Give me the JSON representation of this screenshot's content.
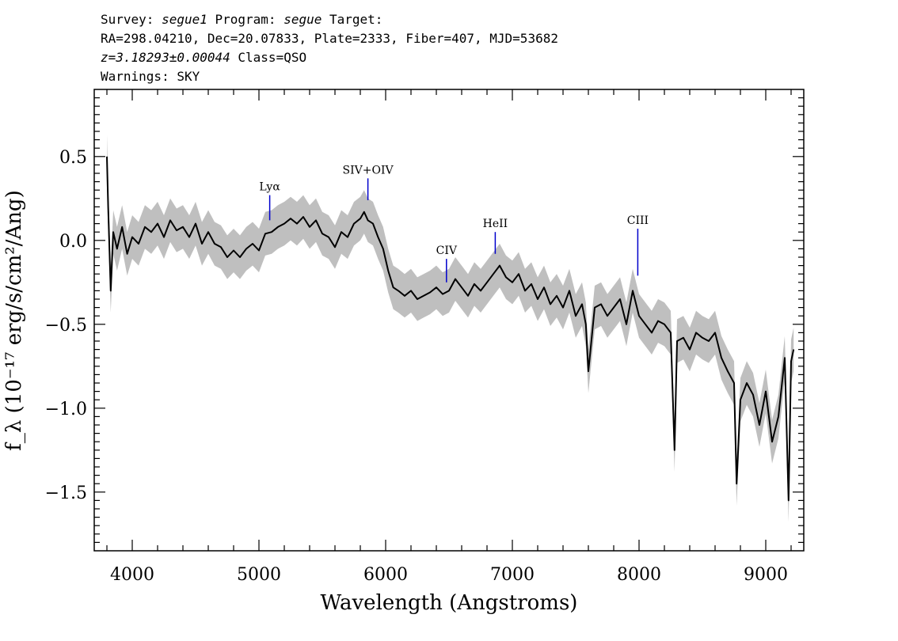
{
  "header": {
    "line1": {
      "survey_label": "Survey: ",
      "survey": "segue1",
      "program_label": " Program: ",
      "program": "segue",
      "target_label": " Target:"
    },
    "line2": "RA=298.04210, Dec=20.07833, Plate=2333, Fiber=407, MJD=53682",
    "line3": {
      "redshift": "z=3.18293±0.00044",
      "class": " Class=QSO"
    },
    "line4": "Warnings: SKY"
  },
  "colors": {
    "flux": "#000000",
    "error": "#bfbfbf",
    "line_marker": "#0000cc"
  },
  "chart_data": {
    "type": "line",
    "xlabel": "Wavelength (Angstroms)",
    "ylabel": "f_λ (10⁻¹⁷ erg/s/cm²/Ang)",
    "xlim": [
      3700,
      9300
    ],
    "ylim": [
      -1.85,
      0.9
    ],
    "xticks": [
      4000,
      5000,
      6000,
      7000,
      8000,
      9000
    ],
    "yticks": [
      0.5,
      0.0,
      -0.5,
      -1.0,
      -1.5
    ],
    "x_tick_labels": [
      "4000",
      "5000",
      "6000",
      "7000",
      "8000",
      "9000"
    ],
    "y_tick_labels": [
      "0.5",
      "0.0",
      "−0.5",
      "−1.0",
      "−1.5"
    ],
    "emission_lines": [
      {
        "label": "Lyα",
        "x": 5085,
        "y_top": 0.27,
        "y_bottom": 0.12
      },
      {
        "label": "SIV+OIV",
        "x": 5860,
        "y_top": 0.37,
        "y_bottom": 0.24
      },
      {
        "label": "CIV",
        "x": 6480,
        "y_top": -0.11,
        "y_bottom": -0.25
      },
      {
        "label": "HeII",
        "x": 6865,
        "y_top": 0.05,
        "y_bottom": -0.08
      },
      {
        "label": "CIII",
        "x": 7990,
        "y_top": 0.07,
        "y_bottom": -0.21
      }
    ],
    "series": [
      {
        "style": "flux",
        "x": [
          3800,
          3810,
          3830,
          3850,
          3880,
          3920,
          3960,
          4000,
          4050,
          4100,
          4150,
          4200,
          4250,
          4300,
          4350,
          4400,
          4450,
          4500,
          4550,
          4600,
          4650,
          4700,
          4750,
          4800,
          4850,
          4900,
          4950,
          5000,
          5050,
          5100,
          5150,
          5200,
          5250,
          5300,
          5350,
          5400,
          5450,
          5500,
          5550,
          5600,
          5650,
          5700,
          5750,
          5800,
          5830,
          5860,
          5900,
          5940,
          5980,
          6020,
          6060,
          6100,
          6150,
          6200,
          6250,
          6300,
          6350,
          6400,
          6450,
          6500,
          6550,
          6600,
          6650,
          6700,
          6750,
          6800,
          6850,
          6900,
          6950,
          7000,
          7050,
          7100,
          7150,
          7200,
          7250,
          7300,
          7350,
          7400,
          7450,
          7500,
          7550,
          7580,
          7600,
          7650,
          7700,
          7750,
          7800,
          7850,
          7900,
          7950,
          8000,
          8050,
          8100,
          8150,
          8200,
          8250,
          8280,
          8300,
          8350,
          8400,
          8450,
          8500,
          8550,
          8600,
          8650,
          8700,
          8750,
          8770,
          8800,
          8850,
          8900,
          8950,
          9000,
          9050,
          9100,
          9150,
          9180,
          9200,
          9220
        ],
        "y": [
          0.5,
          0.2,
          -0.3,
          0.05,
          -0.05,
          0.08,
          -0.08,
          0.02,
          -0.02,
          0.08,
          0.05,
          0.1,
          0.02,
          0.12,
          0.06,
          0.08,
          0.02,
          0.1,
          -0.02,
          0.05,
          -0.02,
          -0.04,
          -0.1,
          -0.06,
          -0.1,
          -0.05,
          -0.02,
          -0.06,
          0.04,
          0.05,
          0.08,
          0.1,
          0.13,
          0.1,
          0.14,
          0.08,
          0.12,
          0.04,
          0.02,
          -0.04,
          0.05,
          0.02,
          0.1,
          0.13,
          0.17,
          0.12,
          0.1,
          0.02,
          -0.05,
          -0.18,
          -0.28,
          -0.3,
          -0.33,
          -0.3,
          -0.35,
          -0.33,
          -0.31,
          -0.28,
          -0.32,
          -0.3,
          -0.23,
          -0.28,
          -0.33,
          -0.26,
          -0.3,
          -0.25,
          -0.2,
          -0.15,
          -0.22,
          -0.25,
          -0.2,
          -0.3,
          -0.26,
          -0.35,
          -0.28,
          -0.38,
          -0.33,
          -0.4,
          -0.3,
          -0.45,
          -0.38,
          -0.5,
          -0.78,
          -0.4,
          -0.38,
          -0.45,
          -0.4,
          -0.35,
          -0.5,
          -0.3,
          -0.45,
          -0.5,
          -0.55,
          -0.48,
          -0.5,
          -0.55,
          -1.25,
          -0.6,
          -0.58,
          -0.65,
          -0.55,
          -0.58,
          -0.6,
          -0.55,
          -0.7,
          -0.78,
          -0.85,
          -1.45,
          -0.95,
          -0.85,
          -0.92,
          -1.1,
          -0.9,
          -1.2,
          -1.05,
          -0.7,
          -1.55,
          -0.72,
          -0.65
        ]
      },
      {
        "style": "error",
        "band_half_width": 0.13
      }
    ]
  }
}
